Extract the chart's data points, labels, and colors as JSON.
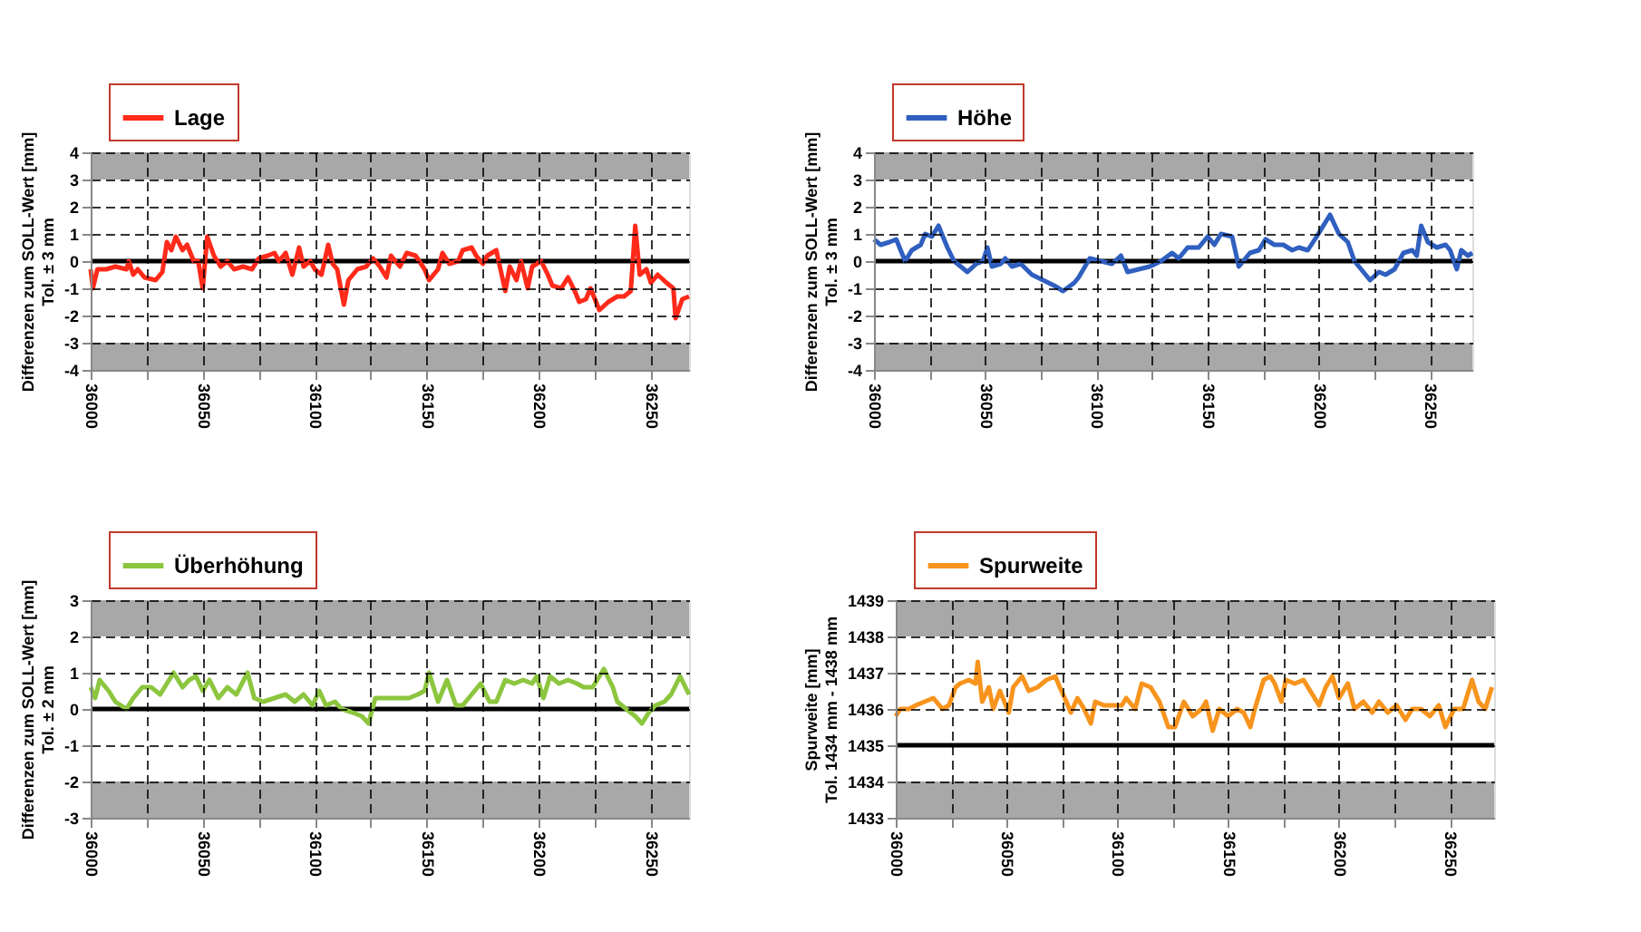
{
  "chart_data": [
    {
      "type": "line",
      "ylabel": "Differenzen zum SOLL-Wert [mm]\nTol. ± 3 mm",
      "xlim": [
        36000,
        36267
      ],
      "ylim": [
        -4,
        4
      ],
      "yticks": [
        -4,
        -3,
        -2,
        -1,
        0,
        1,
        2,
        3,
        4
      ],
      "xticks": [
        36000,
        {
          "value": 36025,
          "label": null
        },
        36050,
        {
          "value": 36075,
          "label": null
        },
        36100,
        {
          "value": 36125,
          "label": null
        },
        36150,
        {
          "value": 36175,
          "label": null
        },
        36200,
        {
          "value": 36225,
          "label": null
        },
        36250
      ],
      "grid": true,
      "legend": "top left",
      "bands": [
        {
          "axis": "y",
          "from": 3,
          "to": 4,
          "color": "#a8a8a8"
        },
        {
          "axis": "y",
          "from": -4,
          "to": -3,
          "color": "#a8a8a8"
        }
      ],
      "ref_lines": [
        {
          "axis": "y",
          "value": 0,
          "color": "#000000"
        }
      ],
      "series": [
        {
          "name": "Lage",
          "color": "#ff2a1a",
          "x": [
            36000,
            36001,
            36003,
            36007,
            36011,
            36016,
            36017,
            36019,
            36021,
            36024,
            36029,
            36032,
            36034,
            36036,
            36038,
            36041,
            36043,
            36046,
            36048,
            36050,
            36052,
            36055,
            36058,
            36061,
            36064,
            36068,
            36072,
            36075,
            36079,
            36082,
            36084,
            36087,
            36090,
            36093,
            36095,
            36098,
            36100,
            36103,
            36106,
            36108,
            36110,
            36113,
            36115,
            36119,
            36123,
            36126,
            36129,
            36132,
            36134,
            36138,
            36141,
            36145,
            36149,
            36151,
            36155,
            36157,
            36160,
            36164,
            36166,
            36170,
            36172,
            36175,
            36177,
            36181,
            36185,
            36187,
            36190,
            36192,
            36195,
            36197,
            36201,
            36204,
            36206,
            36210,
            36213,
            36216,
            36218,
            36221,
            36223,
            36227,
            36231,
            36235,
            36238,
            36241,
            36243,
            36245,
            36248,
            36250,
            36253,
            36257,
            36260,
            36261,
            36264,
            36267
          ],
          "values": [
            -0.3,
            -1.0,
            -0.3,
            -0.3,
            -0.2,
            -0.3,
            0.0,
            -0.5,
            -0.3,
            -0.6,
            -0.7,
            -0.4,
            0.7,
            0.4,
            0.9,
            0.4,
            0.6,
            0.0,
            0.0,
            -1.0,
            0.9,
            0.2,
            -0.2,
            0.0,
            -0.3,
            -0.2,
            -0.3,
            0.1,
            0.2,
            0.3,
            0.0,
            0.3,
            -0.5,
            0.5,
            -0.2,
            0.0,
            -0.3,
            -0.5,
            0.6,
            -0.1,
            -0.3,
            -1.6,
            -0.7,
            -0.3,
            -0.2,
            0.1,
            -0.2,
            -0.6,
            0.2,
            -0.2,
            0.3,
            0.2,
            -0.3,
            -0.7,
            -0.3,
            0.3,
            -0.1,
            0.0,
            0.4,
            0.5,
            0.2,
            -0.1,
            0.2,
            0.4,
            -1.1,
            -0.2,
            -0.7,
            0.0,
            -1.0,
            -0.2,
            0.0,
            -0.5,
            -0.9,
            -1.0,
            -0.6,
            -1.1,
            -1.5,
            -1.4,
            -1.0,
            -1.8,
            -1.5,
            -1.3,
            -1.3,
            -1.1,
            1.3,
            -0.5,
            -0.3,
            -0.8,
            -0.5,
            -0.8,
            -1.0,
            -2.1,
            -1.4,
            -1.3
          ]
        }
      ]
    },
    {
      "type": "line",
      "ylabel": "Differenzen zum SOLL-Wert [mm]\nTol. ± 3 mm",
      "xlim": [
        36000,
        36269
      ],
      "ylim": [
        -4,
        4
      ],
      "yticks": [
        -4,
        -3,
        -2,
        -1,
        0,
        1,
        2,
        3,
        4
      ],
      "xticks": [
        36000,
        {
          "value": 36025,
          "label": null
        },
        36050,
        {
          "value": 36075,
          "label": null
        },
        36100,
        {
          "value": 36125,
          "label": null
        },
        36150,
        {
          "value": 36175,
          "label": null
        },
        36200,
        {
          "value": 36225,
          "label": null
        },
        36250
      ],
      "grid": true,
      "legend": "top left",
      "bands": [
        {
          "axis": "y",
          "from": 3,
          "to": 4,
          "color": "#a8a8a8"
        },
        {
          "axis": "y",
          "from": -4,
          "to": -3,
          "color": "#a8a8a8"
        }
      ],
      "ref_lines": [
        {
          "axis": "y",
          "value": 0,
          "color": "#000000"
        }
      ],
      "series": [
        {
          "name": "Höhe",
          "color": "#2f5fbf",
          "x": [
            36000,
            36003,
            36007,
            36010,
            36014,
            36017,
            36021,
            36023,
            36026,
            36029,
            36033,
            36036,
            36039,
            36042,
            36046,
            36049,
            36051,
            36053,
            36057,
            36059,
            36062,
            36066,
            36071,
            36076,
            36081,
            36085,
            36090,
            36092,
            36097,
            36102,
            36107,
            36111,
            36114,
            36119,
            36124,
            36129,
            36134,
            36137,
            36141,
            36146,
            36150,
            36153,
            36156,
            36161,
            36164,
            36169,
            36173,
            36176,
            36180,
            36184,
            36188,
            36191,
            36195,
            36199,
            36205,
            36209,
            36213,
            36216,
            36219,
            36223,
            36227,
            36230,
            36234,
            36238,
            36242,
            36244,
            36246,
            36249,
            36253,
            36257,
            36259,
            36262,
            36264,
            36267,
            36269
          ],
          "values": [
            0.8,
            0.6,
            0.7,
            0.8,
            0.0,
            0.4,
            0.6,
            1.0,
            0.9,
            1.3,
            0.5,
            0.0,
            -0.2,
            -0.4,
            -0.1,
            0.0,
            0.5,
            -0.2,
            -0.1,
            0.1,
            -0.2,
            -0.1,
            -0.5,
            -0.7,
            -0.9,
            -1.1,
            -0.8,
            -0.6,
            0.1,
            0.0,
            -0.1,
            0.2,
            -0.4,
            -0.3,
            -0.2,
            0.0,
            0.3,
            0.1,
            0.5,
            0.5,
            0.9,
            0.6,
            1.0,
            0.9,
            -0.2,
            0.3,
            0.4,
            0.8,
            0.6,
            0.6,
            0.4,
            0.5,
            0.4,
            0.9,
            1.7,
            1.0,
            0.7,
            0.0,
            -0.3,
            -0.7,
            -0.4,
            -0.5,
            -0.3,
            0.3,
            0.4,
            0.2,
            1.3,
            0.7,
            0.5,
            0.6,
            0.4,
            -0.3,
            0.4,
            0.2,
            0.3
          ]
        }
      ]
    },
    {
      "type": "line",
      "ylabel": "Differenzen zum SOLL-Wert [mm]\nTol. ± 2 mm",
      "xlim": [
        36000,
        36267
      ],
      "ylim": [
        -3,
        3
      ],
      "yticks": [
        -3,
        -2,
        -1,
        0,
        1,
        2,
        3
      ],
      "xticks": [
        36000,
        {
          "value": 36025,
          "label": null
        },
        36050,
        {
          "value": 36075,
          "label": null
        },
        36100,
        {
          "value": 36125,
          "label": null
        },
        36150,
        {
          "value": 36175,
          "label": null
        },
        36200,
        {
          "value": 36225,
          "label": null
        },
        36250
      ],
      "grid": true,
      "legend": "top left",
      "bands": [
        {
          "axis": "y",
          "from": 2,
          "to": 3,
          "color": "#a8a8a8"
        },
        {
          "axis": "y",
          "from": -3,
          "to": -2,
          "color": "#a8a8a8"
        }
      ],
      "ref_lines": [
        {
          "axis": "y",
          "value": 0,
          "color": "#000000"
        }
      ],
      "series": [
        {
          "name": "Überhöhung",
          "color": "#8cc63f",
          "x": [
            36000,
            36002,
            36004,
            36008,
            36011,
            36016,
            36019,
            36023,
            36027,
            36031,
            36034,
            36037,
            36041,
            36044,
            36047,
            36050,
            36053,
            36057,
            36061,
            36065,
            36070,
            36073,
            36077,
            36082,
            36087,
            36091,
            36095,
            36099,
            36102,
            36105,
            36109,
            36112,
            36117,
            36121,
            36124,
            36127,
            36132,
            36137,
            36142,
            36146,
            36149,
            36151,
            36155,
            36159,
            36163,
            36166,
            36170,
            36174,
            36178,
            36181,
            36185,
            36189,
            36193,
            36197,
            36199,
            36202,
            36205,
            36209,
            36213,
            36217,
            36220,
            36224,
            36227,
            36229,
            36233,
            36235,
            36239,
            36243,
            36246,
            36249,
            36252,
            36256,
            36259,
            36263,
            36267
          ],
          "values": [
            0.6,
            0.3,
            0.8,
            0.5,
            0.2,
            0.0,
            0.3,
            0.6,
            0.6,
            0.4,
            0.7,
            1.0,
            0.6,
            0.8,
            0.9,
            0.5,
            0.8,
            0.3,
            0.6,
            0.4,
            1.0,
            0.3,
            0.2,
            0.3,
            0.4,
            0.2,
            0.4,
            0.1,
            0.5,
            0.1,
            0.2,
            0.0,
            -0.1,
            -0.2,
            -0.4,
            0.3,
            0.3,
            0.3,
            0.3,
            0.4,
            0.5,
            1.0,
            0.2,
            0.8,
            0.1,
            0.1,
            0.4,
            0.7,
            0.2,
            0.2,
            0.8,
            0.7,
            0.8,
            0.7,
            0.9,
            0.3,
            0.9,
            0.7,
            0.8,
            0.7,
            0.6,
            0.6,
            0.9,
            1.1,
            0.6,
            0.2,
            0.0,
            -0.2,
            -0.4,
            -0.1,
            0.1,
            0.2,
            0.4,
            0.9,
            0.4
          ]
        }
      ]
    },
    {
      "type": "line",
      "ylabel": "Spurweite [mm]\nTol. 1434 mm - 1438 mm",
      "xlim": [
        36000,
        36270
      ],
      "ylim": [
        1433,
        1439
      ],
      "yticks": [
        1433,
        1434,
        1435,
        1436,
        1437,
        1438,
        1439
      ],
      "xticks": [
        36000,
        {
          "value": 36025,
          "label": null
        },
        36050,
        {
          "value": 36075,
          "label": null
        },
        36100,
        {
          "value": 36125,
          "label": null
        },
        36150,
        {
          "value": 36175,
          "label": null
        },
        36200,
        {
          "value": 36225,
          "label": null
        },
        36250
      ],
      "grid": true,
      "legend": "top left",
      "bands": [
        {
          "axis": "y",
          "from": 1438,
          "to": 1439,
          "color": "#a8a8a8"
        },
        {
          "axis": "y",
          "from": 1433,
          "to": 1434,
          "color": "#a8a8a8"
        }
      ],
      "ref_lines": [
        {
          "axis": "y",
          "value": 1435,
          "color": "#000000"
        }
      ],
      "series": [
        {
          "name": "Spurweite",
          "color": "#f7941d",
          "x": [
            36000,
            36002,
            36006,
            36009,
            36013,
            36017,
            36021,
            36024,
            36027,
            36029,
            36033,
            36036,
            36037,
            36039,
            36042,
            36044,
            36047,
            36051,
            36053,
            36057,
            36060,
            36064,
            36068,
            36072,
            36074,
            36077,
            36079,
            36082,
            36085,
            36088,
            36090,
            36094,
            36098,
            36102,
            36104,
            36108,
            36111,
            36115,
            36119,
            36123,
            36126,
            36130,
            36134,
            36138,
            36140,
            36143,
            36146,
            36150,
            36154,
            36157,
            36160,
            36162,
            36166,
            36169,
            36171,
            36174,
            36176,
            36180,
            36184,
            36187,
            36191,
            36194,
            36197,
            36200,
            36204,
            36207,
            36211,
            36215,
            36218,
            36222,
            36226,
            36230,
            36233,
            36237,
            36241,
            36245,
            36248,
            36252,
            36256,
            36260,
            36263,
            36266,
            36269
          ],
          "values": [
            1435.8,
            1436.0,
            1436.0,
            1436.1,
            1436.2,
            1436.3,
            1436.0,
            1436.1,
            1436.6,
            1436.7,
            1436.8,
            1436.7,
            1437.3,
            1436.2,
            1436.6,
            1436.0,
            1436.5,
            1435.9,
            1436.6,
            1436.9,
            1436.5,
            1436.6,
            1436.8,
            1436.9,
            1436.6,
            1436.2,
            1435.9,
            1436.3,
            1436.0,
            1435.6,
            1436.2,
            1436.1,
            1436.1,
            1436.1,
            1436.3,
            1436.0,
            1436.7,
            1436.6,
            1436.2,
            1435.5,
            1435.5,
            1436.2,
            1435.8,
            1436.0,
            1436.2,
            1435.4,
            1436.0,
            1435.8,
            1436.0,
            1435.9,
            1435.5,
            1436.0,
            1436.8,
            1436.9,
            1436.7,
            1436.2,
            1436.8,
            1436.7,
            1436.8,
            1436.5,
            1436.1,
            1436.6,
            1436.9,
            1436.3,
            1436.7,
            1436.0,
            1436.2,
            1435.9,
            1436.2,
            1435.9,
            1436.1,
            1435.7,
            1436.0,
            1436.0,
            1435.8,
            1436.1,
            1435.5,
            1436.0,
            1436.0,
            1436.8,
            1436.2,
            1436.0,
            1436.6
          ]
        }
      ]
    }
  ]
}
